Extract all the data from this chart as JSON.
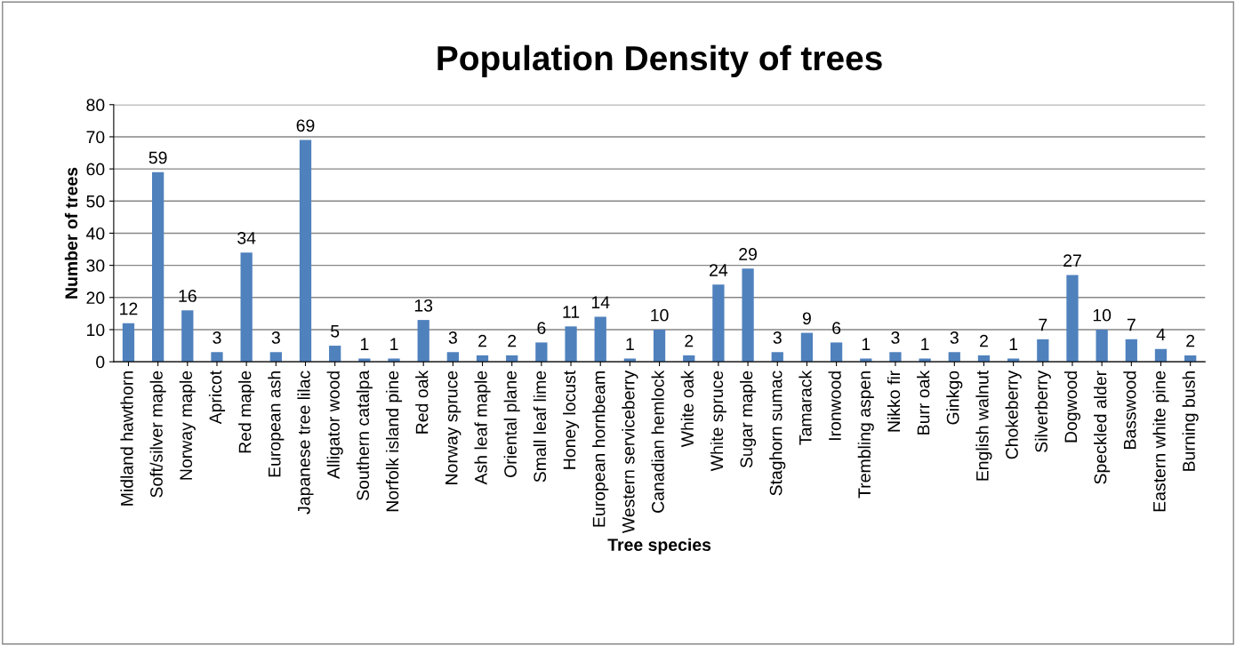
{
  "chart_data": {
    "type": "bar",
    "title": "Population Density of trees",
    "xlabel": "Tree species",
    "ylabel": "Number of trees",
    "categories": [
      "Midland hawthorn",
      "Soft/silver maple",
      "Norway maple",
      "Apricot",
      "Red maple",
      "European ash",
      "Japanese tree lilac",
      "Alligator wood",
      "Southern catalpa",
      "Norfolk island pine",
      "Red oak",
      "Norway spruce",
      "Ash leaf maple",
      "Oriental plane",
      "Small leaf lime",
      "Honey locust",
      "European hornbeam",
      "Western serviceberry",
      "Canadian hemlock",
      "White oak",
      "White spruce",
      "Sugar maple",
      "Staghorn sumac",
      "Tamarack",
      "Ironwood",
      "Trembling aspen",
      "Nikko fir",
      "Burr oak",
      "Ginkgo",
      "English walnut",
      "Chokeberry",
      "Silverberry",
      "Dogwood",
      "Speckled alder",
      "Basswood",
      "Eastern white pine",
      "Burning bush"
    ],
    "values": [
      12,
      59,
      16,
      3,
      34,
      3,
      69,
      5,
      1,
      1,
      13,
      3,
      2,
      2,
      6,
      11,
      14,
      1,
      10,
      2,
      24,
      29,
      3,
      9,
      6,
      1,
      3,
      1,
      3,
      2,
      1,
      7,
      27,
      10,
      7,
      4,
      2
    ],
    "color": "#4f81bd",
    "ylim": [
      0,
      80
    ],
    "yticks": [
      0,
      10,
      20,
      30,
      40,
      50,
      60,
      70,
      80
    ],
    "grid": "y",
    "data_labels": true,
    "legend": false
  }
}
